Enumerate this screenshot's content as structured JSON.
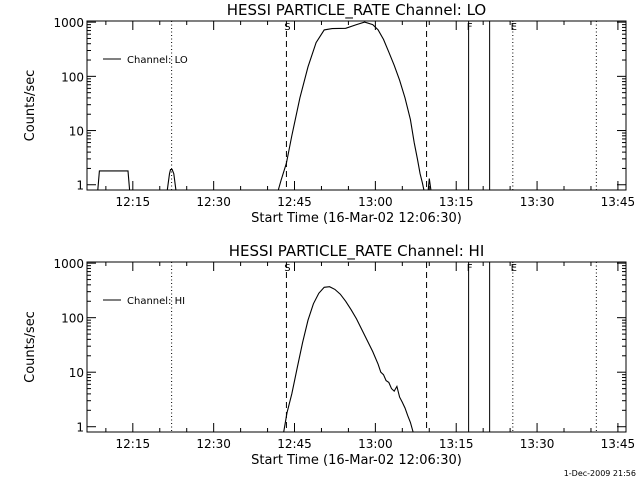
{
  "footer": {
    "timestamp": "1-Dec-2009 21:56"
  },
  "chart_data": [
    {
      "type": "line",
      "title": "HESSI PARTICLE_RATE Channel: LO",
      "xlabel": "Start Time (16-Mar-02 12:06:30)",
      "ylabel": "Counts/sec",
      "x_unit": "minutes after 12:00",
      "xlim": [
        6.5,
        106.5
      ],
      "ylim": [
        0.8,
        1050
      ],
      "yscale": "log",
      "x_ticks": [
        {
          "v": 15,
          "label": "12:15"
        },
        {
          "v": 30,
          "label": "12:30"
        },
        {
          "v": 45,
          "label": "12:45"
        },
        {
          "v": 60,
          "label": "13:00"
        },
        {
          "v": 75,
          "label": "13:15"
        },
        {
          "v": 90,
          "label": "13:30"
        },
        {
          "v": 105,
          "label": "13:45"
        }
      ],
      "y_ticks": [
        {
          "v": 1,
          "label": "1"
        },
        {
          "v": 10,
          "label": "10"
        },
        {
          "v": 100,
          "label": "100"
        },
        {
          "v": 1000,
          "label": "1000"
        }
      ],
      "legend": {
        "position": "top-left",
        "label": "Channel: LO"
      },
      "markers": [
        {
          "x": 22.2,
          "style": "dotted",
          "label": ""
        },
        {
          "x": 43.5,
          "style": "dashed",
          "label": "S"
        },
        {
          "x": 69.5,
          "style": "dashed",
          "label": ""
        },
        {
          "x": 77.3,
          "style": "solid",
          "label": "F"
        },
        {
          "x": 81.2,
          "style": "solid",
          "label": ""
        },
        {
          "x": 85.5,
          "style": "dotted",
          "label": "E"
        },
        {
          "x": 101,
          "style": "dotted",
          "label": ""
        }
      ],
      "series": [
        {
          "segments": [
            {
              "x": [
                8.5,
                8.8,
                14.1,
                14.4
              ],
              "y": [
                0.8,
                1.8,
                1.8,
                0.8
              ]
            },
            {
              "x": [
                21.4,
                21.8,
                22.0,
                22.3,
                22.6,
                23.0
              ],
              "y": [
                0.8,
                1.6,
                1.9,
                1.9,
                1.6,
                0.8
              ]
            },
            {
              "x": [
                42.0,
                42.5,
                43.5,
                44.5,
                46.0,
                47.5,
                49.0,
                50.5,
                52.0,
                54.5,
                56.5,
                58.0,
                59.5,
                60.5,
                61.5,
                62.5,
                63.5,
                64.5,
                65.5,
                66.5,
                67.2,
                67.8,
                68.3,
                68.7,
                69.0
              ],
              "y": [
                0.8,
                1.2,
                2.5,
                8,
                40,
                150,
                420,
                720,
                760,
                770,
                900,
                1000,
                900,
                720,
                480,
                280,
                160,
                85,
                40,
                16,
                6,
                3,
                1.6,
                1.1,
                0.8
              ]
            },
            {
              "x": [
                69.8,
                70.0,
                70.3
              ],
              "y": [
                0.8,
                1.3,
                0.8
              ]
            }
          ]
        }
      ]
    },
    {
      "type": "line",
      "title": "HESSI PARTICLE_RATE Channel: HI",
      "xlabel": "Start Time (16-Mar-02 12:06:30)",
      "ylabel": "Counts/sec",
      "x_unit": "minutes after 12:00",
      "xlim": [
        6.5,
        106.5
      ],
      "ylim": [
        0.8,
        1050
      ],
      "yscale": "log",
      "x_ticks": [
        {
          "v": 15,
          "label": "12:15"
        },
        {
          "v": 30,
          "label": "12:30"
        },
        {
          "v": 45,
          "label": "12:45"
        },
        {
          "v": 60,
          "label": "13:00"
        },
        {
          "v": 75,
          "label": "13:15"
        },
        {
          "v": 90,
          "label": "13:30"
        },
        {
          "v": 105,
          "label": "13:45"
        }
      ],
      "y_ticks": [
        {
          "v": 1,
          "label": "1"
        },
        {
          "v": 10,
          "label": "10"
        },
        {
          "v": 100,
          "label": "100"
        },
        {
          "v": 1000,
          "label": "1000"
        }
      ],
      "legend": {
        "position": "top-left",
        "label": "Channel: HI"
      },
      "markers": [
        {
          "x": 22.2,
          "style": "dotted",
          "label": ""
        },
        {
          "x": 43.5,
          "style": "dashed",
          "label": "S"
        },
        {
          "x": 69.5,
          "style": "dashed",
          "label": ""
        },
        {
          "x": 77.3,
          "style": "solid",
          "label": "F"
        },
        {
          "x": 81.2,
          "style": "solid",
          "label": ""
        },
        {
          "x": 85.5,
          "style": "dotted",
          "label": "E"
        },
        {
          "x": 101,
          "style": "dotted",
          "label": ""
        }
      ],
      "series": [
        {
          "segments": [
            {
              "x": [
                43.0,
                43.6,
                44.5,
                45.5,
                46.5,
                47.5,
                48.5,
                49.5,
                50.5,
                51.5,
                52.5,
                53.5,
                54.5,
                55.5,
                56.5,
                57.5,
                58.5,
                59.5,
                60.5,
                61.0,
                61.5,
                62.0,
                62.5,
                63.0,
                63.5,
                64.0,
                64.5,
                65.0,
                65.5,
                66.0,
                66.5,
                67.0
              ],
              "y": [
                0.8,
                1.8,
                4,
                12,
                35,
                90,
                180,
                280,
                360,
                370,
                330,
                270,
                200,
                140,
                95,
                60,
                38,
                24,
                14,
                10,
                9,
                7,
                6.5,
                5,
                4.5,
                5.5,
                3.5,
                2.8,
                2.2,
                1.6,
                1.2,
                0.8
              ]
            }
          ]
        }
      ]
    }
  ]
}
